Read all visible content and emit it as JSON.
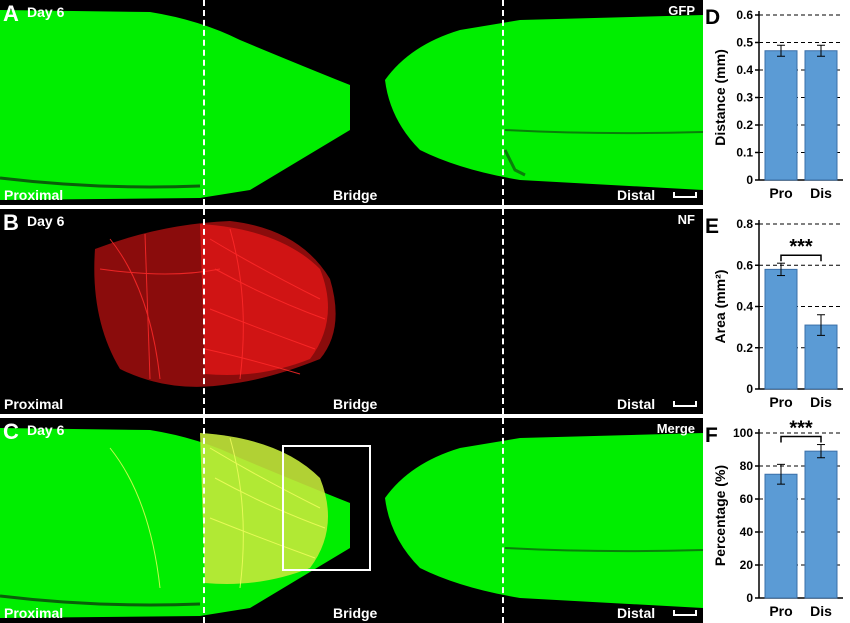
{
  "panels": [
    {
      "letter": "A",
      "day": "Day 6",
      "stain": "GFP",
      "regions": {
        "proximal": "Proximal",
        "bridge": "Bridge",
        "distal": "Distal"
      }
    },
    {
      "letter": "B",
      "day": "Day 6",
      "stain": "NF",
      "regions": {
        "proximal": "Proximal",
        "bridge": "Bridge",
        "distal": "Distal"
      }
    },
    {
      "letter": "C",
      "day": "Day 6",
      "stain": "Merge",
      "regions": {
        "proximal": "Proximal",
        "bridge": "Bridge",
        "distal": "Distal"
      }
    }
  ],
  "colors": {
    "gfp": "#00ee00",
    "nf": "#ee1111",
    "merge": "#d8ee20",
    "bar": "#5b9bd5"
  },
  "chart_data": [
    {
      "type": "bar",
      "panel": "D",
      "categories": [
        "Pro",
        "Dis"
      ],
      "values": [
        0.47,
        0.47
      ],
      "errors": [
        0.02,
        0.02
      ],
      "ylabel": "Distance (mm)",
      "ylim": [
        0,
        0.6
      ],
      "ticks": [
        "0",
        "0.1",
        "0.2",
        "0.3",
        "0.4",
        "0.5",
        "0.6"
      ],
      "grid": true,
      "significance": ""
    },
    {
      "type": "bar",
      "panel": "E",
      "categories": [
        "Pro",
        "Dis"
      ],
      "values": [
        0.58,
        0.31
      ],
      "errors": [
        0.03,
        0.05
      ],
      "ylabel": "Area (mm²)",
      "ylim": [
        0,
        0.8
      ],
      "ticks": [
        "0",
        "0.2",
        "0.4",
        "0.6",
        "0.8"
      ],
      "grid": true,
      "significance": "***"
    },
    {
      "type": "bar",
      "panel": "F",
      "categories": [
        "Pro",
        "Dis"
      ],
      "values": [
        75,
        89
      ],
      "errors": [
        6,
        4
      ],
      "ylabel": "Percentage (%)",
      "ylim": [
        0,
        100
      ],
      "ticks": [
        "0",
        "20",
        "40",
        "60",
        "80",
        "100"
      ],
      "grid": true,
      "significance": "***"
    }
  ]
}
